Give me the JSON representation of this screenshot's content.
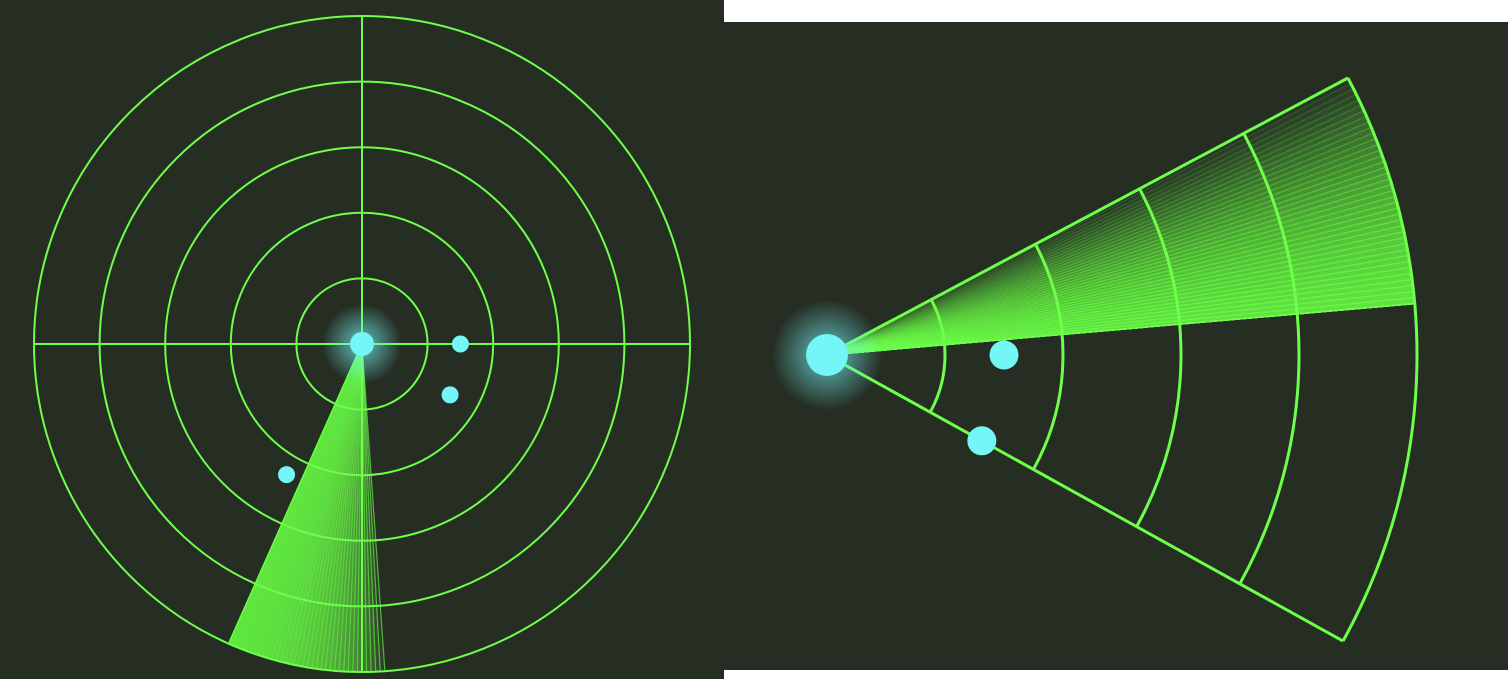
{
  "colors": {
    "background": "#262e24",
    "grid": "#6dff4a",
    "sweep": "#6dff4a",
    "blip": "#74f6f6",
    "outer": "#ffffff"
  },
  "circular_radar": {
    "ring_count": 5,
    "crosshair": true,
    "sweep": {
      "center_angle_deg": 100,
      "width_deg": 28
    },
    "blips": [
      {
        "angle_deg": 0,
        "range": 0.3,
        "size": "small"
      },
      {
        "angle_deg": 30,
        "range": 0.31,
        "size": "small"
      },
      {
        "angle_deg": 120,
        "range": 0.46,
        "size": "small"
      }
    ]
  },
  "sector_radar": {
    "start_angle_deg": -28,
    "end_angle_deg": 29,
    "ring_count": 5,
    "sweep": {
      "from_angle_deg": -28,
      "to_angle_deg": -5
    },
    "blips": [
      {
        "angle_deg": 0,
        "range": 0.3,
        "size": "large"
      },
      {
        "angle_deg": 29,
        "range": 0.3,
        "size": "large"
      }
    ]
  }
}
